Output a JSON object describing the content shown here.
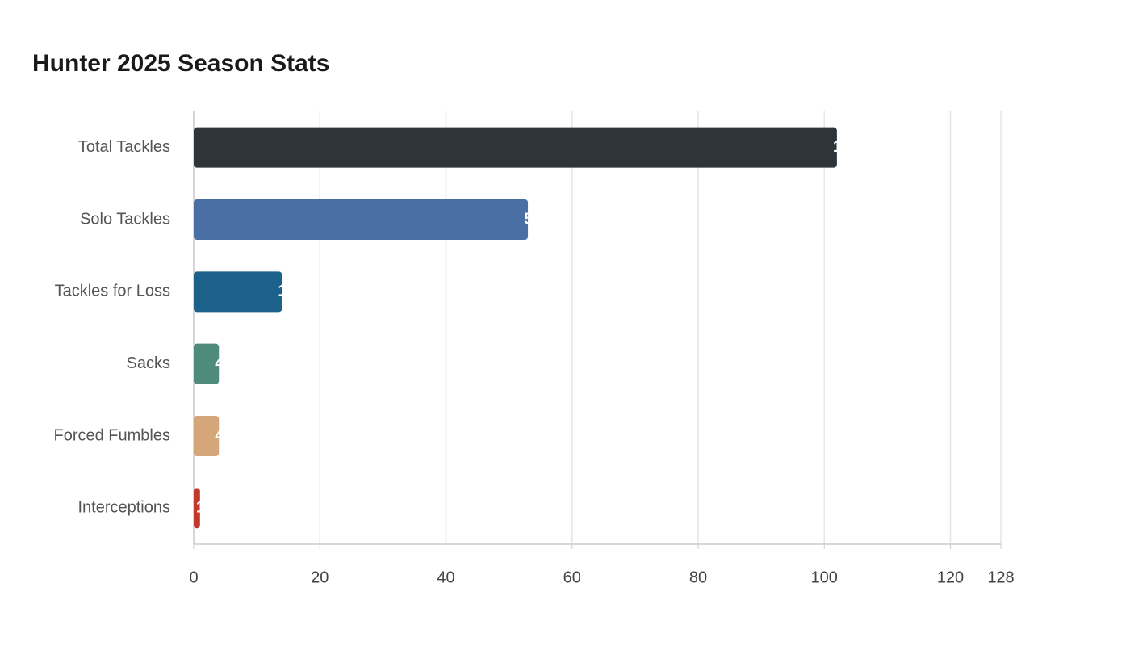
{
  "chart_data": {
    "type": "bar",
    "orientation": "horizontal",
    "title": "Hunter 2025 Season Stats",
    "categories": [
      "Total Tackles",
      "Solo Tackles",
      "Tackles for Loss",
      "Sacks",
      "Forced Fumbles",
      "Interceptions"
    ],
    "values": [
      102,
      53,
      14,
      4,
      4,
      1
    ],
    "colors": [
      "#2e3437",
      "#4a6fa5",
      "#1b6189",
      "#4f8b7a",
      "#d4a679",
      "#c0392b"
    ],
    "xlim": [
      0,
      128
    ],
    "xticks": [
      0,
      20,
      40,
      60,
      80,
      100,
      120,
      128
    ],
    "grid": true
  }
}
